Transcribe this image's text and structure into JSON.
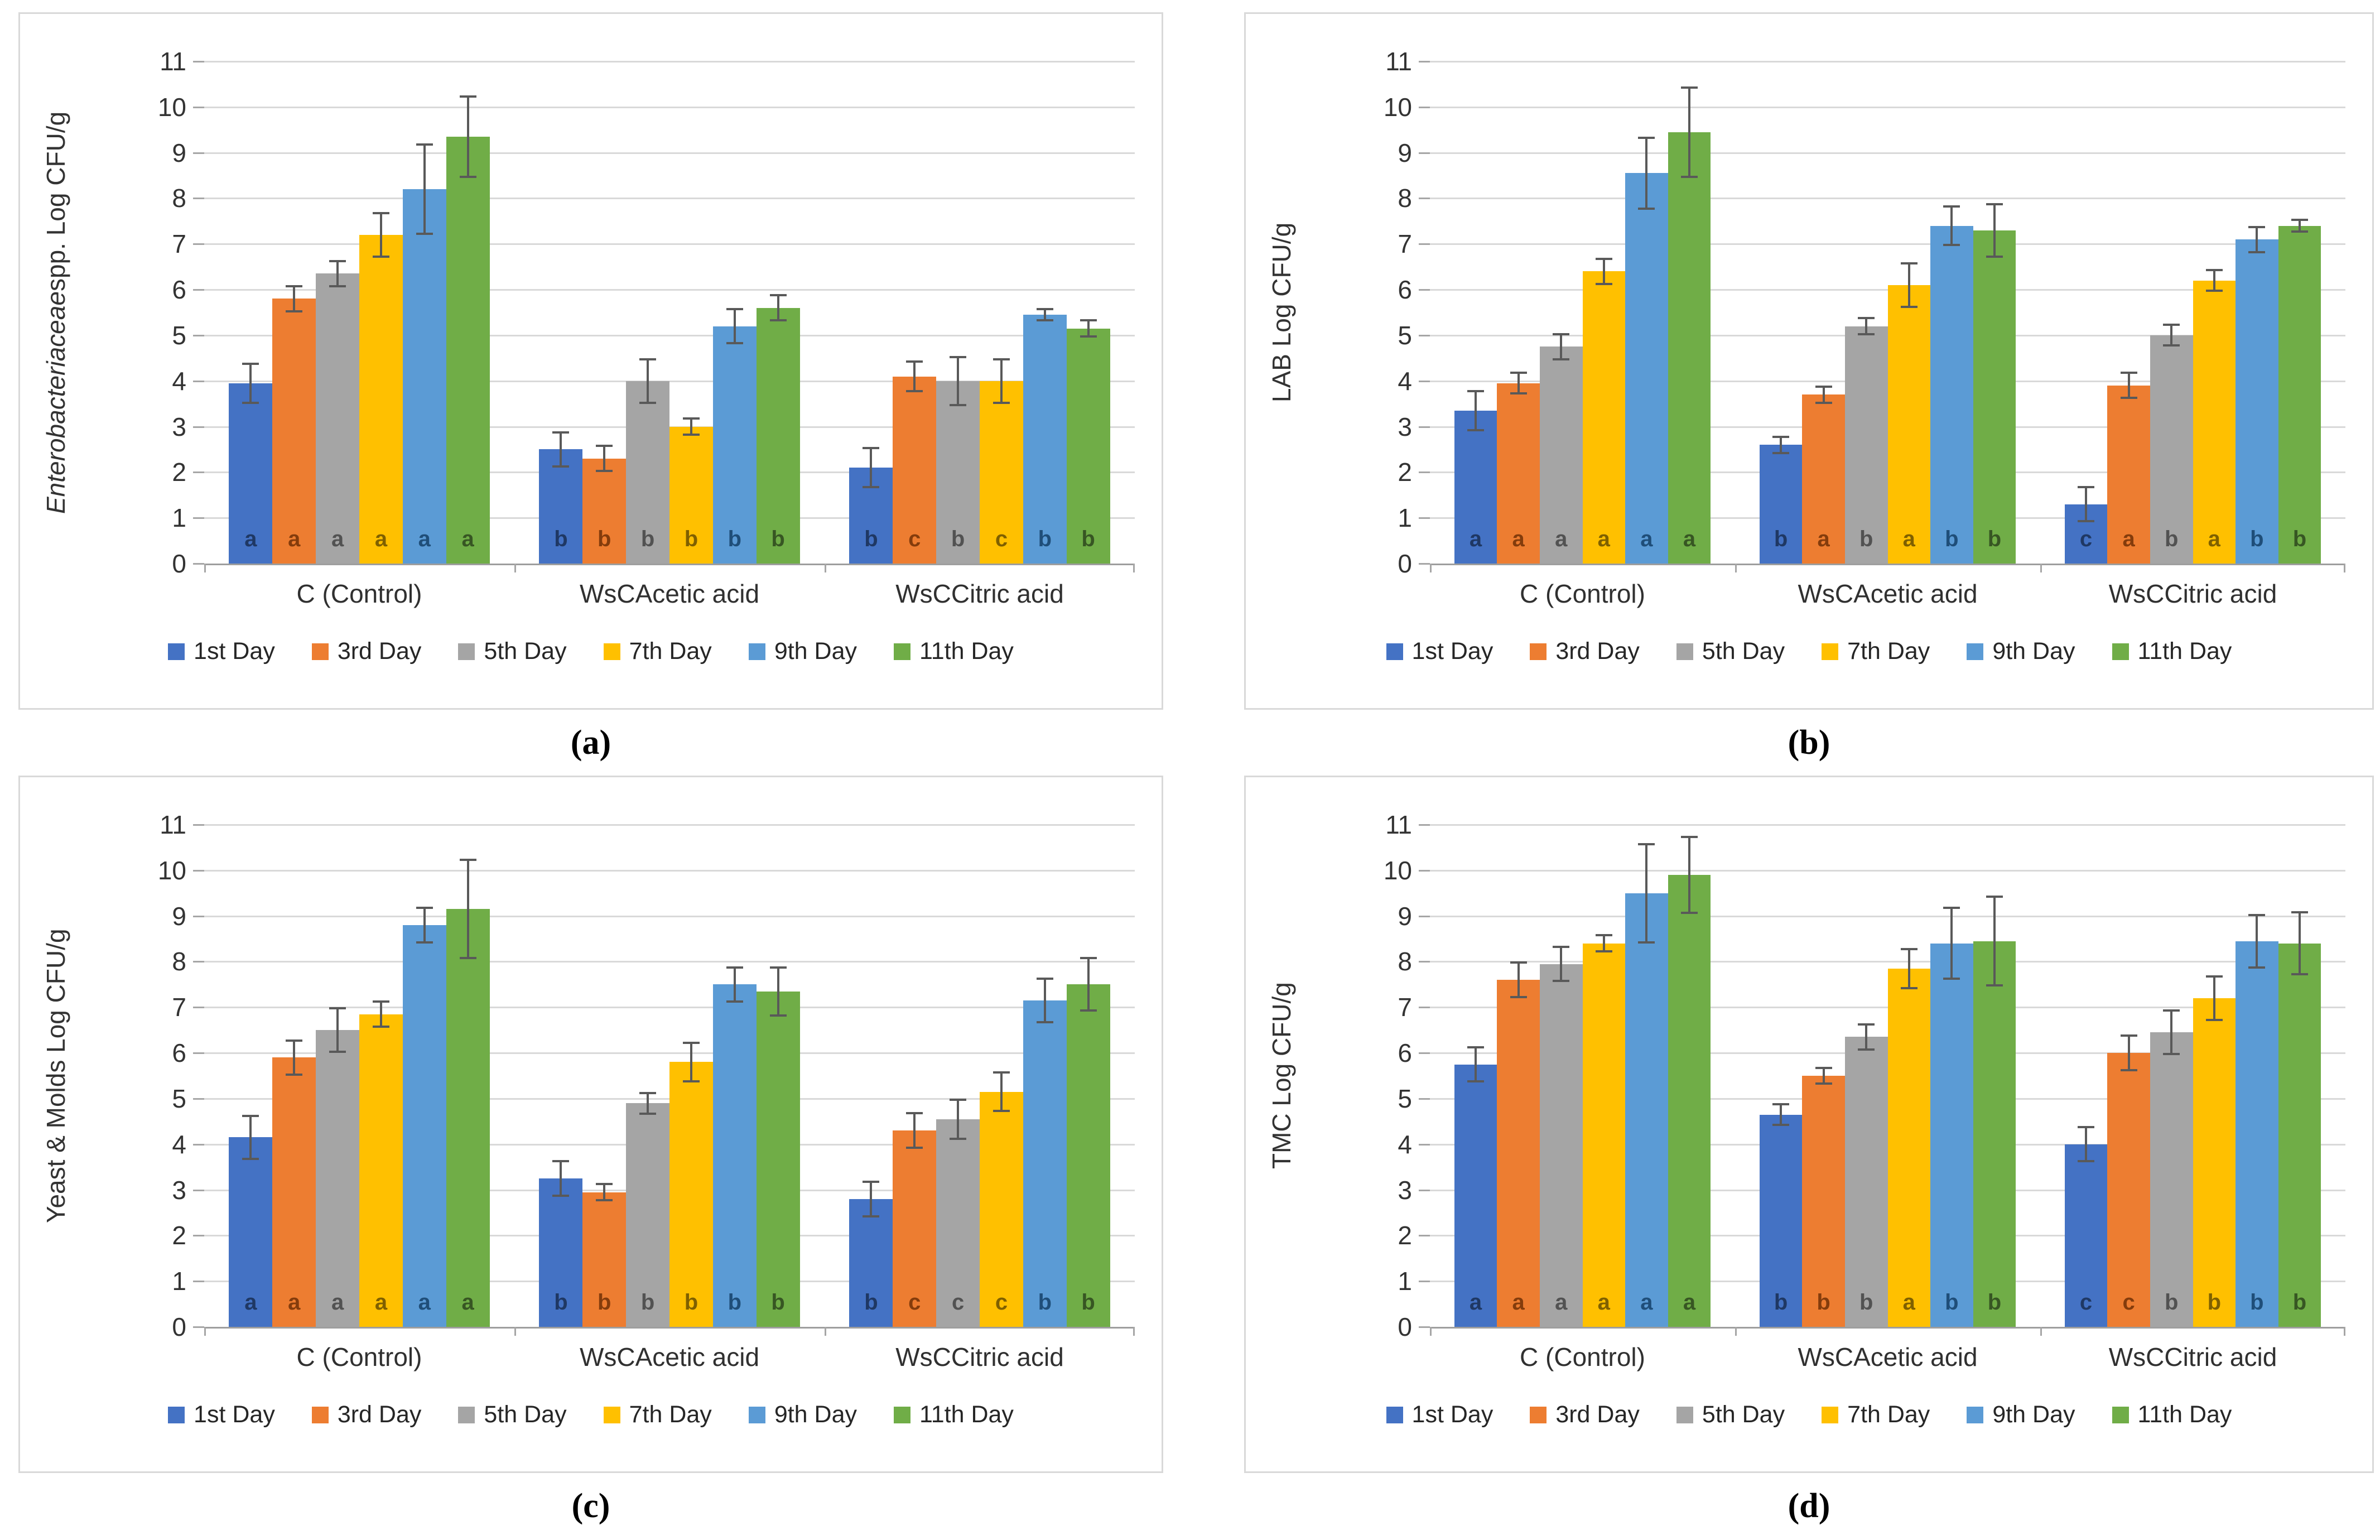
{
  "figure": {
    "captions": [
      "(a)",
      "(b)",
      "(c)",
      "(d)"
    ],
    "legend_labels": [
      "1st Day",
      "3rd Day",
      "5th Day",
      "7th Day",
      "9th Day",
      "11th Day"
    ],
    "categories": [
      "C (Control)",
      "WsCAcetic acid",
      "WsCCitric acid"
    ]
  },
  "colors": {
    "series": [
      "#4472C4",
      "#ED7D31",
      "#A5A5A5",
      "#FFC000",
      "#5B9BD5",
      "#70AD47"
    ],
    "series_dark": [
      "#1F3864",
      "#843C0C",
      "#525252",
      "#7F6000",
      "#1F4E79",
      "#375623"
    ],
    "error_bar": "#595959",
    "gridline": "#D9D9D9",
    "axis_line": "#9E9E9E",
    "tick_mark": "#A6A6A6",
    "panel_border": "#D9D9D9",
    "text": "#333333"
  },
  "chart_data": [
    {
      "id": "a",
      "type": "bar",
      "ylabel": "Enterobacteriaceae spp. Log CFU/g",
      "ylabel_parts": [
        {
          "text": "Enterobacteriaceae",
          "italic": true
        },
        {
          "text": " spp. Log CFU/g",
          "italic": false
        }
      ],
      "ylim": [
        0,
        11
      ],
      "yticks": [
        0,
        1,
        2,
        3,
        4,
        5,
        6,
        7,
        8,
        9,
        10,
        11
      ],
      "grid": true,
      "legend_position": "bottom",
      "categories": [
        "C (Control)",
        "WsCAcetic acid",
        "WsCCitric acid"
      ],
      "series": [
        {
          "name": "1st Day",
          "values": [
            3.95,
            2.5,
            2.1
          ],
          "errors": [
            0.45,
            0.4,
            0.45
          ],
          "letters": [
            "a",
            "b",
            "b"
          ]
        },
        {
          "name": "3rd Day",
          "values": [
            5.8,
            2.3,
            4.1
          ],
          "errors": [
            0.3,
            0.3,
            0.35
          ],
          "letters": [
            "a",
            "b",
            "c"
          ]
        },
        {
          "name": "5th Day",
          "values": [
            6.35,
            4.0,
            4.0
          ],
          "errors": [
            0.3,
            0.5,
            0.55
          ],
          "letters": [
            "a",
            "b",
            "b"
          ]
        },
        {
          "name": "7th Day",
          "values": [
            7.2,
            3.0,
            4.0
          ],
          "errors": [
            0.5,
            0.2,
            0.5
          ],
          "letters": [
            "a",
            "b",
            "c"
          ]
        },
        {
          "name": "9th Day",
          "values": [
            8.2,
            5.2,
            5.45
          ],
          "errors": [
            1.0,
            0.4,
            0.15
          ],
          "letters": [
            "a",
            "b",
            "b"
          ]
        },
        {
          "name": "11th Day",
          "values": [
            9.35,
            5.6,
            5.15
          ],
          "errors": [
            0.9,
            0.3,
            0.2
          ],
          "letters": [
            "a",
            "b",
            "b"
          ]
        }
      ]
    },
    {
      "id": "b",
      "type": "bar",
      "ylabel": "LAB Log CFU/g",
      "ylabel_parts": [
        {
          "text": "LAB Log CFU/g",
          "italic": false
        }
      ],
      "ylim": [
        0,
        11
      ],
      "yticks": [
        0,
        1,
        2,
        3,
        4,
        5,
        6,
        7,
        8,
        9,
        10,
        11
      ],
      "grid": true,
      "legend_position": "bottom",
      "categories": [
        "C (Control)",
        "WsCAcetic acid",
        "WsCCitric acid"
      ],
      "series": [
        {
          "name": "1st Day",
          "values": [
            3.35,
            2.6,
            1.3
          ],
          "errors": [
            0.45,
            0.2,
            0.4
          ],
          "letters": [
            "a",
            "b",
            "c"
          ]
        },
        {
          "name": "3rd Day",
          "values": [
            3.95,
            3.7,
            3.9
          ],
          "errors": [
            0.25,
            0.2,
            0.3
          ],
          "letters": [
            "a",
            "a",
            "a"
          ]
        },
        {
          "name": "5th Day",
          "values": [
            4.75,
            5.2,
            5.0
          ],
          "errors": [
            0.3,
            0.2,
            0.25
          ],
          "letters": [
            "a",
            "b",
            "b"
          ]
        },
        {
          "name": "7th Day",
          "values": [
            6.4,
            6.1,
            6.2
          ],
          "errors": [
            0.3,
            0.5,
            0.25
          ],
          "letters": [
            "a",
            "a",
            "a"
          ]
        },
        {
          "name": "9th Day",
          "values": [
            8.55,
            7.4,
            7.1
          ],
          "errors": [
            0.8,
            0.45,
            0.3
          ],
          "letters": [
            "a",
            "b",
            "b"
          ]
        },
        {
          "name": "11th Day",
          "values": [
            9.45,
            7.3,
            7.4
          ],
          "errors": [
            1.0,
            0.6,
            0.15
          ],
          "letters": [
            "a",
            "b",
            "b"
          ]
        }
      ]
    },
    {
      "id": "c",
      "type": "bar",
      "ylabel": "Yeast & Molds Log CFU/g",
      "ylabel_parts": [
        {
          "text": "Yeast & Molds Log CFU/g",
          "italic": false
        }
      ],
      "ylim": [
        0,
        11
      ],
      "yticks": [
        0,
        1,
        2,
        3,
        4,
        5,
        6,
        7,
        8,
        9,
        10,
        11
      ],
      "grid": true,
      "legend_position": "bottom",
      "categories": [
        "C (Control)",
        "WsCAcetic acid",
        "WsCCitric acid"
      ],
      "series": [
        {
          "name": "1st Day",
          "values": [
            4.15,
            3.25,
            2.8
          ],
          "errors": [
            0.5,
            0.4,
            0.4
          ],
          "letters": [
            "a",
            "b",
            "b"
          ]
        },
        {
          "name": "3rd Day",
          "values": [
            5.9,
            2.95,
            4.3
          ],
          "errors": [
            0.4,
            0.2,
            0.4
          ],
          "letters": [
            "a",
            "b",
            "c"
          ]
        },
        {
          "name": "5th Day",
          "values": [
            6.5,
            4.9,
            4.55
          ],
          "errors": [
            0.5,
            0.25,
            0.45
          ],
          "letters": [
            "a",
            "b",
            "c"
          ]
        },
        {
          "name": "7th Day",
          "values": [
            6.85,
            5.8,
            5.15
          ],
          "errors": [
            0.3,
            0.45,
            0.45
          ],
          "letters": [
            "a",
            "b",
            "c"
          ]
        },
        {
          "name": "9th Day",
          "values": [
            8.8,
            7.5,
            7.15
          ],
          "errors": [
            0.4,
            0.4,
            0.5
          ],
          "letters": [
            "a",
            "b",
            "b"
          ]
        },
        {
          "name": "11th Day",
          "values": [
            9.15,
            7.35,
            7.5
          ],
          "errors": [
            1.1,
            0.55,
            0.6
          ],
          "letters": [
            "a",
            "b",
            "b"
          ]
        }
      ]
    },
    {
      "id": "d",
      "type": "bar",
      "ylabel": "TMC Log CFU/g",
      "ylabel_parts": [
        {
          "text": "TMC Log CFU/g",
          "italic": false
        }
      ],
      "ylim": [
        0,
        11
      ],
      "yticks": [
        0,
        1,
        2,
        3,
        4,
        5,
        6,
        7,
        8,
        9,
        10,
        11
      ],
      "grid": true,
      "legend_position": "bottom",
      "categories": [
        "C (Control)",
        "WsCAcetic acid",
        "WsCCitric acid"
      ],
      "series": [
        {
          "name": "1st Day",
          "values": [
            5.75,
            4.65,
            4.0
          ],
          "errors": [
            0.4,
            0.25,
            0.4
          ],
          "letters": [
            "a",
            "b",
            "c"
          ]
        },
        {
          "name": "3rd Day",
          "values": [
            7.6,
            5.5,
            6.0
          ],
          "errors": [
            0.4,
            0.2,
            0.4
          ],
          "letters": [
            "a",
            "b",
            "c"
          ]
        },
        {
          "name": "5th Day",
          "values": [
            7.95,
            6.35,
            6.45
          ],
          "errors": [
            0.4,
            0.3,
            0.5
          ],
          "letters": [
            "a",
            "b",
            "b"
          ]
        },
        {
          "name": "7th Day",
          "values": [
            8.4,
            7.85,
            7.2
          ],
          "errors": [
            0.2,
            0.45,
            0.5
          ],
          "letters": [
            "a",
            "a",
            "b"
          ]
        },
        {
          "name": "9th Day",
          "values": [
            9.5,
            8.4,
            8.45
          ],
          "errors": [
            1.1,
            0.8,
            0.6
          ],
          "letters": [
            "a",
            "b",
            "b"
          ]
        },
        {
          "name": "11th Day",
          "values": [
            9.9,
            8.45,
            8.4
          ],
          "errors": [
            0.85,
            1.0,
            0.7
          ],
          "letters": [
            "a",
            "b",
            "b"
          ]
        }
      ]
    }
  ]
}
